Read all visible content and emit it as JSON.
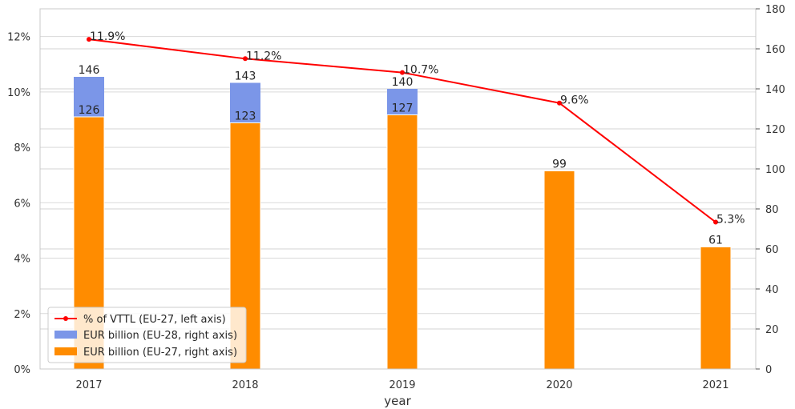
{
  "chart_data": {
    "type": "bar",
    "xlabel": "year",
    "categories": [
      "2017",
      "2018",
      "2019",
      "2020",
      "2021"
    ],
    "left_axis": {
      "ylim": [
        0,
        13
      ],
      "ticks": [
        0,
        2,
        4,
        6,
        8,
        10,
        12
      ],
      "tick_labels": [
        "0%",
        "2%",
        "4%",
        "6%",
        "8%",
        "10%",
        "12%"
      ]
    },
    "right_axis": {
      "ylim": [
        0,
        180
      ],
      "ticks": [
        0,
        20,
        40,
        60,
        80,
        100,
        120,
        140,
        160,
        180
      ],
      "tick_labels": [
        "0",
        "20",
        "40",
        "60",
        "80",
        "100",
        "120",
        "140",
        "160",
        "180"
      ]
    },
    "grid": true,
    "legend_position": "lower-left",
    "series": [
      {
        "name": "% of VTTL (EU-27, left axis)",
        "type": "line",
        "axis": "left",
        "color": "#ff0000",
        "values": [
          11.9,
          11.2,
          10.7,
          9.6,
          5.3
        ],
        "labels": [
          "11.9%",
          "11.2%",
          "10.7%",
          "9.6%",
          "5.3%"
        ]
      },
      {
        "name": "EUR billion (EU-28, right axis)",
        "type": "bar",
        "axis": "right",
        "color": "#7b96e8",
        "values": [
          146,
          143,
          140,
          null,
          null
        ],
        "labels": [
          "146",
          "143",
          "140",
          "",
          ""
        ]
      },
      {
        "name": "EUR billion (EU-27, right axis)",
        "type": "bar",
        "axis": "right",
        "color": "#ff8c00",
        "values": [
          126,
          123,
          127,
          99,
          61
        ],
        "labels": [
          "126",
          "123",
          "127",
          "99",
          "61"
        ]
      }
    ]
  }
}
